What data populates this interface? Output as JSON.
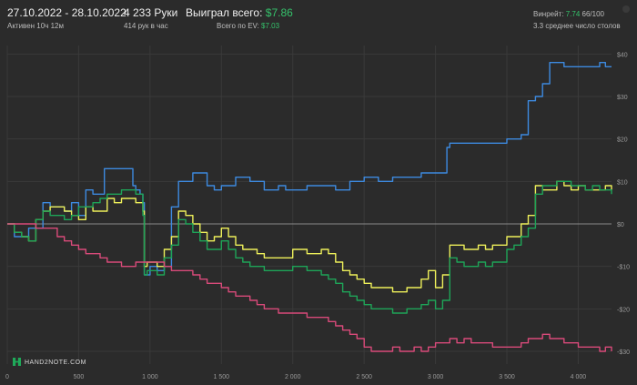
{
  "header": {
    "date_range": "27.10.2022 - 28.10.2022",
    "active_time": "Активен 10ч 12м",
    "hands": "4 233 Руки",
    "hands_per_hour": "414 рук в час",
    "won_label": "Выиграл всего:",
    "won_value": "$7.86",
    "ev_label": "Всего по EV:",
    "ev_value": "$7.03",
    "winrate_label": "Винрейт:",
    "winrate_value": "7.74",
    "winrate_extra": "66/100",
    "tables_avg": "3.3 среднее число столов"
  },
  "logo": {
    "text": "HAND2NOTE.COM"
  },
  "colors": {
    "background": "#2b2b2b",
    "grid": "#3a3a3a",
    "zero_line": "#8a8a8a",
    "blue": "#3d8ae0",
    "yellow": "#eef05a",
    "green": "#1ea558",
    "pink": "#d94a7a"
  },
  "chart_data": {
    "type": "line",
    "xlim": [
      0,
      4233
    ],
    "ylim": [
      -33,
      42
    ],
    "x_ticks": [
      0,
      500,
      1000,
      1500,
      2000,
      2500,
      3000,
      3500,
      4000
    ],
    "x_tick_labels": [
      "0",
      "500",
      "1 000",
      "1 500",
      "2 000",
      "2 500",
      "3 000",
      "3 500",
      "4 000"
    ],
    "y_ticks": [
      40,
      30,
      20,
      10,
      0,
      -10,
      -20,
      -30
    ],
    "y_tick_labels": [
      "$40",
      "$30",
      "$20",
      "$10",
      "$0",
      "-$10",
      "-$20",
      "-$30"
    ],
    "grid": true,
    "series": [
      {
        "color": "#3d8ae0",
        "points": [
          [
            0,
            0
          ],
          [
            50,
            -3
          ],
          [
            100,
            -3
          ],
          [
            150,
            -1
          ],
          [
            250,
            5
          ],
          [
            300,
            4
          ],
          [
            400,
            3
          ],
          [
            450,
            5
          ],
          [
            500,
            2
          ],
          [
            550,
            8
          ],
          [
            600,
            7
          ],
          [
            680,
            13
          ],
          [
            750,
            13
          ],
          [
            800,
            13
          ],
          [
            850,
            13
          ],
          [
            880,
            9
          ],
          [
            900,
            8
          ],
          [
            930,
            7
          ],
          [
            950,
            5
          ],
          [
            960,
            -12
          ],
          [
            980,
            -12
          ],
          [
            1000,
            -10
          ],
          [
            1050,
            -11
          ],
          [
            1100,
            -10
          ],
          [
            1150,
            4
          ],
          [
            1200,
            10
          ],
          [
            1300,
            12
          ],
          [
            1350,
            12
          ],
          [
            1400,
            9
          ],
          [
            1450,
            8
          ],
          [
            1500,
            9
          ],
          [
            1550,
            9
          ],
          [
            1600,
            11
          ],
          [
            1700,
            10
          ],
          [
            1800,
            8
          ],
          [
            1850,
            8
          ],
          [
            1900,
            9
          ],
          [
            1950,
            8
          ],
          [
            2000,
            8
          ],
          [
            2100,
            9
          ],
          [
            2200,
            9
          ],
          [
            2300,
            8
          ],
          [
            2400,
            10
          ],
          [
            2500,
            11
          ],
          [
            2600,
            10
          ],
          [
            2700,
            11
          ],
          [
            2800,
            11
          ],
          [
            2900,
            12
          ],
          [
            3000,
            12
          ],
          [
            3050,
            12
          ],
          [
            3080,
            18
          ],
          [
            3100,
            19
          ],
          [
            3200,
            19
          ],
          [
            3300,
            19
          ],
          [
            3400,
            19
          ],
          [
            3500,
            20
          ],
          [
            3550,
            20
          ],
          [
            3600,
            21
          ],
          [
            3650,
            29
          ],
          [
            3700,
            30
          ],
          [
            3750,
            33
          ],
          [
            3800,
            38
          ],
          [
            3850,
            38
          ],
          [
            3900,
            37
          ],
          [
            3950,
            37
          ],
          [
            4000,
            37
          ],
          [
            4100,
            37
          ],
          [
            4150,
            38
          ],
          [
            4190,
            37
          ],
          [
            4233,
            37
          ]
        ]
      },
      {
        "color": "#eef05a",
        "points": [
          [
            0,
            0
          ],
          [
            50,
            -2
          ],
          [
            100,
            -3
          ],
          [
            150,
            -4
          ],
          [
            200,
            1
          ],
          [
            250,
            3
          ],
          [
            300,
            4
          ],
          [
            400,
            3
          ],
          [
            450,
            2
          ],
          [
            500,
            1
          ],
          [
            550,
            4
          ],
          [
            600,
            3
          ],
          [
            650,
            3
          ],
          [
            700,
            6
          ],
          [
            750,
            5
          ],
          [
            800,
            6
          ],
          [
            850,
            6
          ],
          [
            900,
            5
          ],
          [
            950,
            3
          ],
          [
            960,
            -10
          ],
          [
            980,
            -9
          ],
          [
            1000,
            -9
          ],
          [
            1050,
            -10
          ],
          [
            1100,
            -6
          ],
          [
            1150,
            -3
          ],
          [
            1200,
            3
          ],
          [
            1250,
            2
          ],
          [
            1300,
            0
          ],
          [
            1350,
            -2
          ],
          [
            1400,
            -4
          ],
          [
            1450,
            -3
          ],
          [
            1500,
            -1
          ],
          [
            1550,
            -3
          ],
          [
            1600,
            -5
          ],
          [
            1650,
            -6
          ],
          [
            1700,
            -6
          ],
          [
            1750,
            -7
          ],
          [
            1800,
            -8
          ],
          [
            1900,
            -8
          ],
          [
            2000,
            -6
          ],
          [
            2100,
            -7
          ],
          [
            2200,
            -6
          ],
          [
            2250,
            -7
          ],
          [
            2300,
            -9
          ],
          [
            2350,
            -11
          ],
          [
            2400,
            -12
          ],
          [
            2450,
            -13
          ],
          [
            2500,
            -14
          ],
          [
            2550,
            -15
          ],
          [
            2600,
            -15
          ],
          [
            2700,
            -16
          ],
          [
            2800,
            -15
          ],
          [
            2900,
            -13
          ],
          [
            2950,
            -11
          ],
          [
            3000,
            -15
          ],
          [
            3050,
            -12
          ],
          [
            3100,
            -5
          ],
          [
            3150,
            -5
          ],
          [
            3200,
            -6
          ],
          [
            3250,
            -6
          ],
          [
            3300,
            -5
          ],
          [
            3350,
            -6
          ],
          [
            3400,
            -5
          ],
          [
            3450,
            -5
          ],
          [
            3500,
            -3
          ],
          [
            3550,
            -3
          ],
          [
            3600,
            0
          ],
          [
            3650,
            2
          ],
          [
            3700,
            9
          ],
          [
            3750,
            8
          ],
          [
            3800,
            8
          ],
          [
            3850,
            10
          ],
          [
            3900,
            9
          ],
          [
            3950,
            8
          ],
          [
            4000,
            9
          ],
          [
            4050,
            8
          ],
          [
            4100,
            8
          ],
          [
            4150,
            8
          ],
          [
            4190,
            9
          ],
          [
            4233,
            8
          ]
        ]
      },
      {
        "color": "#1ea558",
        "points": [
          [
            0,
            0
          ],
          [
            50,
            -2
          ],
          [
            100,
            -3
          ],
          [
            150,
            -4
          ],
          [
            200,
            1
          ],
          [
            250,
            3
          ],
          [
            300,
            2
          ],
          [
            400,
            1
          ],
          [
            450,
            2
          ],
          [
            500,
            4
          ],
          [
            550,
            4
          ],
          [
            600,
            5
          ],
          [
            650,
            6
          ],
          [
            700,
            7
          ],
          [
            750,
            7
          ],
          [
            800,
            8
          ],
          [
            850,
            8
          ],
          [
            900,
            7
          ],
          [
            950,
            2
          ],
          [
            960,
            -12
          ],
          [
            980,
            -11
          ],
          [
            1000,
            -11
          ],
          [
            1050,
            -12
          ],
          [
            1100,
            -8
          ],
          [
            1150,
            -5
          ],
          [
            1200,
            1
          ],
          [
            1250,
            0
          ],
          [
            1300,
            -2
          ],
          [
            1350,
            -4
          ],
          [
            1400,
            -6
          ],
          [
            1450,
            -6
          ],
          [
            1500,
            -4
          ],
          [
            1550,
            -6
          ],
          [
            1600,
            -8
          ],
          [
            1650,
            -9
          ],
          [
            1700,
            -10
          ],
          [
            1750,
            -10
          ],
          [
            1800,
            -11
          ],
          [
            1900,
            -11
          ],
          [
            2000,
            -10
          ],
          [
            2100,
            -11
          ],
          [
            2200,
            -12
          ],
          [
            2250,
            -13
          ],
          [
            2300,
            -14
          ],
          [
            2350,
            -16
          ],
          [
            2400,
            -17
          ],
          [
            2450,
            -18
          ],
          [
            2500,
            -19
          ],
          [
            2550,
            -20
          ],
          [
            2600,
            -20
          ],
          [
            2700,
            -21
          ],
          [
            2800,
            -20
          ],
          [
            2900,
            -19
          ],
          [
            2950,
            -18
          ],
          [
            3000,
            -20
          ],
          [
            3050,
            -18
          ],
          [
            3100,
            -8
          ],
          [
            3150,
            -9
          ],
          [
            3200,
            -10
          ],
          [
            3250,
            -10
          ],
          [
            3300,
            -9
          ],
          [
            3350,
            -10
          ],
          [
            3400,
            -9
          ],
          [
            3450,
            -9
          ],
          [
            3500,
            -6
          ],
          [
            3550,
            -5
          ],
          [
            3600,
            -3
          ],
          [
            3650,
            -1
          ],
          [
            3700,
            7
          ],
          [
            3750,
            9
          ],
          [
            3800,
            9
          ],
          [
            3850,
            10
          ],
          [
            3900,
            10
          ],
          [
            3950,
            9
          ],
          [
            4000,
            9
          ],
          [
            4050,
            8
          ],
          [
            4100,
            9
          ],
          [
            4150,
            8
          ],
          [
            4190,
            8
          ],
          [
            4233,
            7
          ]
        ]
      },
      {
        "color": "#d94a7a",
        "points": [
          [
            0,
            0
          ],
          [
            100,
            0
          ],
          [
            200,
            -1
          ],
          [
            300,
            -1
          ],
          [
            350,
            -3
          ],
          [
            400,
            -4
          ],
          [
            450,
            -5
          ],
          [
            500,
            -6
          ],
          [
            550,
            -7
          ],
          [
            600,
            -7
          ],
          [
            650,
            -8
          ],
          [
            700,
            -9
          ],
          [
            750,
            -9
          ],
          [
            800,
            -10
          ],
          [
            850,
            -10
          ],
          [
            900,
            -9
          ],
          [
            950,
            -9
          ],
          [
            1000,
            -9
          ],
          [
            1050,
            -9
          ],
          [
            1100,
            -10
          ],
          [
            1150,
            -11
          ],
          [
            1200,
            -11
          ],
          [
            1250,
            -11
          ],
          [
            1300,
            -12
          ],
          [
            1350,
            -13
          ],
          [
            1400,
            -14
          ],
          [
            1450,
            -14
          ],
          [
            1500,
            -15
          ],
          [
            1550,
            -16
          ],
          [
            1600,
            -17
          ],
          [
            1650,
            -17
          ],
          [
            1700,
            -18
          ],
          [
            1750,
            -19
          ],
          [
            1800,
            -20
          ],
          [
            1850,
            -20
          ],
          [
            1900,
            -21
          ],
          [
            1950,
            -21
          ],
          [
            2000,
            -21
          ],
          [
            2050,
            -21
          ],
          [
            2100,
            -22
          ],
          [
            2150,
            -22
          ],
          [
            2200,
            -22
          ],
          [
            2250,
            -23
          ],
          [
            2300,
            -24
          ],
          [
            2350,
            -25
          ],
          [
            2400,
            -26
          ],
          [
            2450,
            -27
          ],
          [
            2500,
            -29
          ],
          [
            2550,
            -30
          ],
          [
            2600,
            -30
          ],
          [
            2650,
            -30
          ],
          [
            2700,
            -29
          ],
          [
            2750,
            -30
          ],
          [
            2800,
            -30
          ],
          [
            2850,
            -29
          ],
          [
            2900,
            -30
          ],
          [
            2950,
            -29
          ],
          [
            3000,
            -28
          ],
          [
            3050,
            -28
          ],
          [
            3100,
            -27
          ],
          [
            3150,
            -28
          ],
          [
            3200,
            -27
          ],
          [
            3250,
            -28
          ],
          [
            3300,
            -28
          ],
          [
            3350,
            -28
          ],
          [
            3400,
            -29
          ],
          [
            3450,
            -29
          ],
          [
            3500,
            -29
          ],
          [
            3550,
            -29
          ],
          [
            3600,
            -28
          ],
          [
            3650,
            -27
          ],
          [
            3700,
            -27
          ],
          [
            3750,
            -26
          ],
          [
            3800,
            -27
          ],
          [
            3850,
            -27
          ],
          [
            3900,
            -28
          ],
          [
            3950,
            -28
          ],
          [
            4000,
            -29
          ],
          [
            4050,
            -29
          ],
          [
            4100,
            -29
          ],
          [
            4150,
            -30
          ],
          [
            4190,
            -29
          ],
          [
            4233,
            -30
          ]
        ]
      }
    ]
  }
}
